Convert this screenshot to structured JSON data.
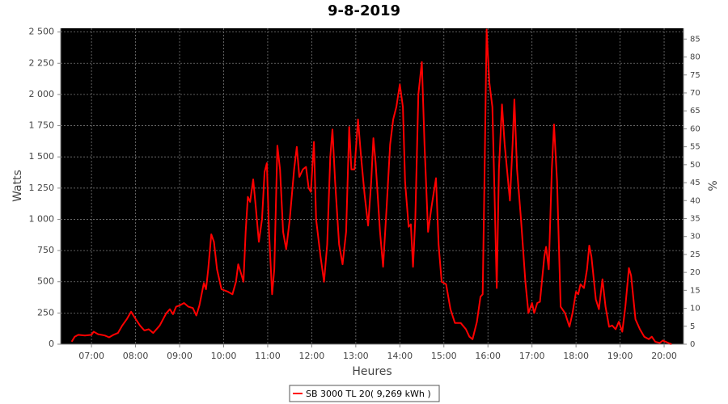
{
  "chart_data": {
    "type": "line",
    "title": "9-8-2019",
    "x_label": "Heures",
    "y_label": "Watts",
    "y2_label": "%",
    "x": [
      6.55,
      6.62,
      6.7,
      6.85,
      7.0,
      7.05,
      7.15,
      7.3,
      7.4,
      7.5,
      7.6,
      7.7,
      7.8,
      7.9,
      7.97,
      8.1,
      8.2,
      8.3,
      8.4,
      8.55,
      8.7,
      8.78,
      8.85,
      8.92,
      9.0,
      9.1,
      9.2,
      9.3,
      9.38,
      9.45,
      9.55,
      9.6,
      9.65,
      9.72,
      9.78,
      9.85,
      9.95,
      10.1,
      10.2,
      10.28,
      10.33,
      10.4,
      10.45,
      10.5,
      10.55,
      10.6,
      10.67,
      10.73,
      10.8,
      10.87,
      10.93,
      10.98,
      11.03,
      11.1,
      11.15,
      11.22,
      11.28,
      11.35,
      11.42,
      11.5,
      11.6,
      11.66,
      11.72,
      11.8,
      11.87,
      11.93,
      11.98,
      12.05,
      12.1,
      12.2,
      12.28,
      12.35,
      12.42,
      12.47,
      12.53,
      12.62,
      12.7,
      12.78,
      12.85,
      12.9,
      12.97,
      13.05,
      13.12,
      13.2,
      13.28,
      13.35,
      13.4,
      13.45,
      13.55,
      13.62,
      13.7,
      13.78,
      13.85,
      13.92,
      14.0,
      14.07,
      14.12,
      14.2,
      14.25,
      14.3,
      14.35,
      14.42,
      14.5,
      14.56,
      14.64,
      14.72,
      14.82,
      14.88,
      14.95,
      15.05,
      15.15,
      15.25,
      15.38,
      15.5,
      15.58,
      15.65,
      15.75,
      15.83,
      15.88,
      15.92,
      15.97,
      16.03,
      16.1,
      16.15,
      16.2,
      16.25,
      16.32,
      16.38,
      16.5,
      16.56,
      16.6,
      16.66,
      16.75,
      16.85,
      16.92,
      17.0,
      17.05,
      17.12,
      17.18,
      17.28,
      17.32,
      17.38,
      17.45,
      17.5,
      17.57,
      17.65,
      17.75,
      17.85,
      17.92,
      18.0,
      18.05,
      18.1,
      18.18,
      18.25,
      18.3,
      18.35,
      18.45,
      18.52,
      18.6,
      18.67,
      18.75,
      18.82,
      18.9,
      18.97,
      19.05,
      19.12,
      19.2,
      19.25,
      19.35,
      19.45,
      19.55,
      19.65,
      19.72,
      19.8,
      19.9,
      19.97,
      20.1,
      20.17
    ],
    "series": [
      {
        "name": "SB 3000 TL 20( 9,269 kWh )",
        "color": "#ff0000",
        "values": [
          20,
          60,
          75,
          70,
          75,
          100,
          80,
          70,
          55,
          75,
          90,
          150,
          200,
          260,
          220,
          150,
          110,
          120,
          90,
          150,
          250,
          280,
          240,
          300,
          310,
          330,
          300,
          290,
          230,
          310,
          490,
          440,
          600,
          880,
          820,
          600,
          440,
          420,
          400,
          500,
          640,
          560,
          500,
          900,
          1180,
          1140,
          1320,
          1100,
          820,
          1000,
          1380,
          1450,
          900,
          400,
          600,
          1590,
          1400,
          900,
          760,
          1000,
          1400,
          1580,
          1340,
          1400,
          1420,
          1250,
          1220,
          1620,
          1000,
          700,
          500,
          800,
          1500,
          1720,
          1300,
          800,
          640,
          900,
          1740,
          1400,
          1400,
          1800,
          1500,
          1200,
          950,
          1300,
          1650,
          1450,
          900,
          620,
          1100,
          1600,
          1800,
          1900,
          2080,
          1900,
          1300,
          940,
          960,
          620,
          1000,
          2000,
          2260,
          1600,
          900,
          1100,
          1330,
          800,
          500,
          480,
          280,
          170,
          170,
          120,
          60,
          40,
          180,
          380,
          400,
          1300,
          2520,
          2100,
          1900,
          1200,
          450,
          1400,
          1920,
          1600,
          1150,
          1600,
          1960,
          1400,
          1000,
          500,
          250,
          330,
          250,
          330,
          340,
          700,
          780,
          600,
          1400,
          1760,
          1300,
          300,
          250,
          140,
          250,
          420,
          400,
          480,
          450,
          600,
          790,
          700,
          360,
          280,
          520,
          300,
          140,
          150,
          120,
          180,
          100,
          300,
          610,
          550,
          200,
          120,
          60,
          40,
          60,
          20,
          10,
          30,
          10,
          0
        ]
      }
    ],
    "xlim": [
      6.3,
      20.44
    ],
    "xticks": [
      {
        "value": 7,
        "label": "07:00"
      },
      {
        "value": 8,
        "label": "08:00"
      },
      {
        "value": 9,
        "label": "09:00"
      },
      {
        "value": 10,
        "label": "10:00"
      },
      {
        "value": 11,
        "label": "11:00"
      },
      {
        "value": 12,
        "label": "12:00"
      },
      {
        "value": 13,
        "label": "13:00"
      },
      {
        "value": 14,
        "label": "14:00"
      },
      {
        "value": 15,
        "label": "15:00"
      },
      {
        "value": 16,
        "label": "16:00"
      },
      {
        "value": 17,
        "label": "17:00"
      },
      {
        "value": 18,
        "label": "18:00"
      },
      {
        "value": 19,
        "label": "19:00"
      },
      {
        "value": 20,
        "label": "20:00"
      }
    ],
    "ylim": [
      0,
      2530
    ],
    "yticks": [
      0,
      250,
      500,
      750,
      {
        "value": 1000,
        "label": "1 000"
      },
      {
        "value": 1250,
        "label": "1 250"
      },
      {
        "value": 1500,
        "label": "1 500"
      },
      {
        "value": 1750,
        "label": "1 750"
      },
      {
        "value": 2000,
        "label": "2 000"
      },
      {
        "value": 2250,
        "label": "2 250"
      },
      {
        "value": 2500,
        "label": "2 500"
      }
    ],
    "y2lim": [
      0,
      88
    ],
    "y2ticks": [
      0,
      5,
      10,
      15,
      20,
      25,
      30,
      35,
      40,
      45,
      50,
      55,
      60,
      65,
      70,
      75,
      80,
      85
    ],
    "grid": true,
    "plot_background": "#000000",
    "legend": "bottom"
  }
}
